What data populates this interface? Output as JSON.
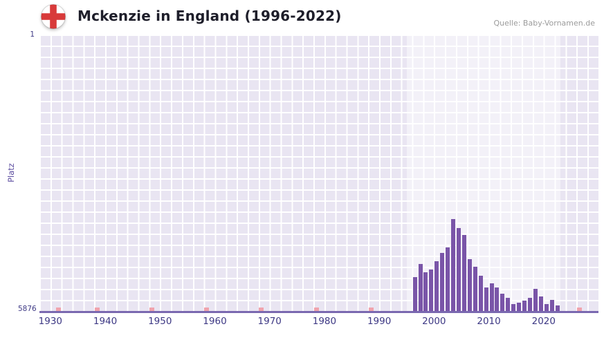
{
  "header": {
    "title": "Mckenzie in England (1996-2022)",
    "source": "Quelle: Baby-Vornamen.de",
    "flag": "england-flag"
  },
  "chart_data": {
    "type": "bar",
    "title": "Mckenzie in England (1996-2022)",
    "ylabel": "Platz",
    "y_axis_inverted": true,
    "ylim": [
      1,
      5876
    ],
    "y_tick_top": "1",
    "y_tick_bottom": "5876",
    "x_range": [
      1928,
      2030
    ],
    "x_tick_years": [
      1930,
      1940,
      1950,
      1960,
      1970,
      1980,
      1990,
      2000,
      2010,
      2020
    ],
    "highlight_band_years": [
      1995,
      2023
    ],
    "unranked_marker_years": [
      1931,
      1938,
      1948,
      1958,
      1968,
      1978,
      1988,
      2026
    ],
    "years": [
      1996,
      1997,
      1998,
      1999,
      2000,
      2001,
      2002,
      2003,
      2004,
      2005,
      2006,
      2007,
      2008,
      2009,
      2010,
      2011,
      2012,
      2013,
      2014,
      2015,
      2016,
      2017,
      2018,
      2019,
      2020,
      2021,
      2022
    ],
    "ranks": [
      5150,
      4880,
      5060,
      4990,
      4820,
      4640,
      4520,
      3920,
      4120,
      4260,
      4780,
      4930,
      5120,
      5370,
      5290,
      5370,
      5510,
      5590,
      5730,
      5700,
      5660,
      5590,
      5410,
      5560,
      5730,
      5640,
      5760
    ],
    "grid": true,
    "legend": false,
    "colors": {
      "bar": "#7a55a8",
      "plot_bg": "#e9e5f2",
      "band": "rgba(255,255,255,0.45)",
      "grid_line": "#ffffff",
      "axis_line": "#7a68b0",
      "tick_label": "#3d3884",
      "marker": "#f0a3ad",
      "title": "#1e1e2a",
      "source": "#9b9b9b",
      "flag_cross": "#d83a3a"
    }
  }
}
